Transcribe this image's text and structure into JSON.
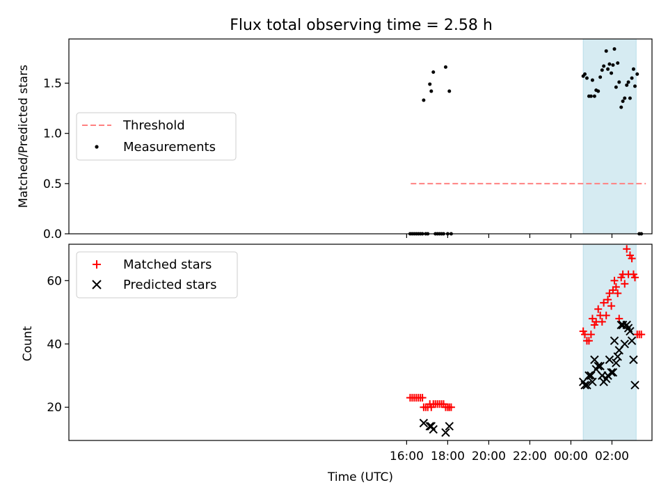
{
  "chart_data": [
    {
      "type": "scatter",
      "title": "Flux total observing time = 2.58 h",
      "xlabel": "",
      "ylabel": "Matched/Predicted stars",
      "xlim": [
        -0.45,
        27.95
      ],
      "ylim": [
        0.0,
        1.94
      ],
      "yticks": [
        0.0,
        0.5,
        1.0,
        1.5
      ],
      "ytick_labels": [
        "0.0",
        "0.5",
        "1.0",
        "1.5"
      ],
      "shaded_span": {
        "x": [
          24.6,
          27.18
        ],
        "color": "#add8e6"
      },
      "legend": {
        "position": "upper-left",
        "entries": [
          "Threshold",
          "Measurements"
        ]
      },
      "series": [
        {
          "name": "Threshold",
          "style": "dashed-line",
          "color": "#ff8080",
          "x": [
            16.2,
            27.65
          ],
          "y": [
            0.5,
            0.5
          ]
        },
        {
          "name": "Measurements",
          "style": "dot",
          "color": "#000000",
          "x": [
            16.17,
            16.27,
            16.37,
            16.47,
            16.57,
            16.67,
            16.77,
            16.83,
            16.93,
            17.03,
            17.13,
            17.2,
            17.3,
            17.4,
            17.5,
            17.6,
            17.7,
            17.8,
            17.9,
            18.0,
            18.08,
            18.17,
            24.6,
            24.68,
            24.78,
            24.88,
            24.98,
            25.05,
            25.15,
            25.23,
            25.33,
            25.43,
            25.52,
            25.6,
            25.72,
            25.8,
            25.88,
            25.97,
            26.05,
            26.12,
            26.2,
            26.28,
            26.35,
            26.45,
            26.53,
            26.62,
            26.72,
            26.8,
            26.88,
            26.97,
            27.05,
            27.12,
            27.23,
            27.33,
            27.43
          ],
          "y": [
            0,
            0,
            0,
            0,
            0,
            0,
            0,
            1.33,
            0,
            0,
            1.49,
            1.42,
            1.61,
            0,
            0,
            0,
            0,
            0,
            1.66,
            0,
            1.42,
            0,
            1.57,
            1.59,
            1.55,
            1.37,
            1.37,
            1.53,
            1.37,
            1.43,
            1.42,
            1.56,
            1.63,
            1.67,
            1.82,
            1.64,
            1.69,
            1.6,
            1.68,
            1.84,
            1.46,
            1.7,
            1.51,
            1.26,
            1.32,
            1.35,
            1.48,
            1.51,
            1.35,
            1.55,
            1.64,
            1.47,
            1.59,
            0,
            0
          ]
        }
      ]
    },
    {
      "type": "scatter",
      "title": "",
      "xlabel": "Time (UTC)",
      "ylabel": "Count",
      "xlim": [
        -0.45,
        27.95
      ],
      "ylim": [
        9.5,
        71.5
      ],
      "yticks": [
        20,
        40,
        60
      ],
      "ytick_labels": [
        "20",
        "40",
        "60"
      ],
      "xticks": [
        16,
        18,
        20,
        22,
        24,
        26
      ],
      "xtick_labels": [
        "16:00",
        "18:00",
        "20:00",
        "22:00",
        "00:00",
        "02:00"
      ],
      "shaded_span": {
        "x": [
          24.6,
          27.18
        ],
        "color": "#add8e6"
      },
      "legend": {
        "position": "upper-left",
        "entries": [
          "Matched stars",
          "Predicted stars"
        ]
      },
      "series": [
        {
          "name": "Matched stars",
          "marker": "plus",
          "color": "#ff0000",
          "x": [
            16.17,
            16.27,
            16.37,
            16.47,
            16.57,
            16.67,
            16.77,
            16.83,
            16.93,
            17.03,
            17.13,
            17.2,
            17.3,
            17.4,
            17.5,
            17.6,
            17.7,
            17.8,
            17.9,
            18.0,
            18.08,
            18.17,
            24.6,
            24.68,
            24.78,
            24.88,
            24.98,
            25.05,
            25.15,
            25.23,
            25.33,
            25.43,
            25.52,
            25.6,
            25.72,
            25.8,
            25.88,
            25.97,
            26.05,
            26.12,
            26.2,
            26.28,
            26.35,
            26.45,
            26.53,
            26.62,
            26.72,
            26.8,
            26.88,
            26.97,
            27.05,
            27.12,
            27.23,
            27.33,
            27.43
          ],
          "y": [
            23,
            23,
            23,
            23,
            23,
            23,
            23,
            20,
            20,
            20,
            21,
            20,
            21,
            21,
            21,
            21,
            21,
            21,
            20,
            20,
            20,
            20,
            44,
            43,
            41,
            41,
            43,
            48,
            46,
            47,
            51,
            49,
            47,
            53,
            49,
            54,
            56,
            52,
            57,
            60,
            58,
            56,
            48,
            61,
            62,
            59,
            70,
            62,
            68,
            67,
            62,
            61,
            43,
            43,
            43
          ]
        },
        {
          "name": "Predicted stars",
          "marker": "x",
          "color": "#000000",
          "x": [
            16.83,
            17.13,
            17.2,
            17.3,
            17.9,
            18.08,
            24.6,
            24.68,
            24.78,
            24.88,
            24.98,
            25.05,
            25.15,
            25.23,
            25.33,
            25.43,
            25.52,
            25.6,
            25.72,
            25.8,
            25.88,
            25.97,
            26.05,
            26.12,
            26.2,
            26.28,
            26.35,
            26.45,
            26.53,
            26.62,
            26.72,
            26.8,
            26.88,
            26.97,
            27.05,
            27.12
          ],
          "y": [
            15,
            14,
            14,
            13,
            12,
            14,
            28,
            27,
            27,
            30,
            30,
            28,
            35,
            32,
            33,
            33,
            30,
            28,
            29,
            30,
            35,
            31,
            31,
            41,
            34,
            36,
            38,
            46,
            46,
            40,
            46,
            45,
            44,
            41,
            35,
            27
          ]
        }
      ]
    }
  ]
}
